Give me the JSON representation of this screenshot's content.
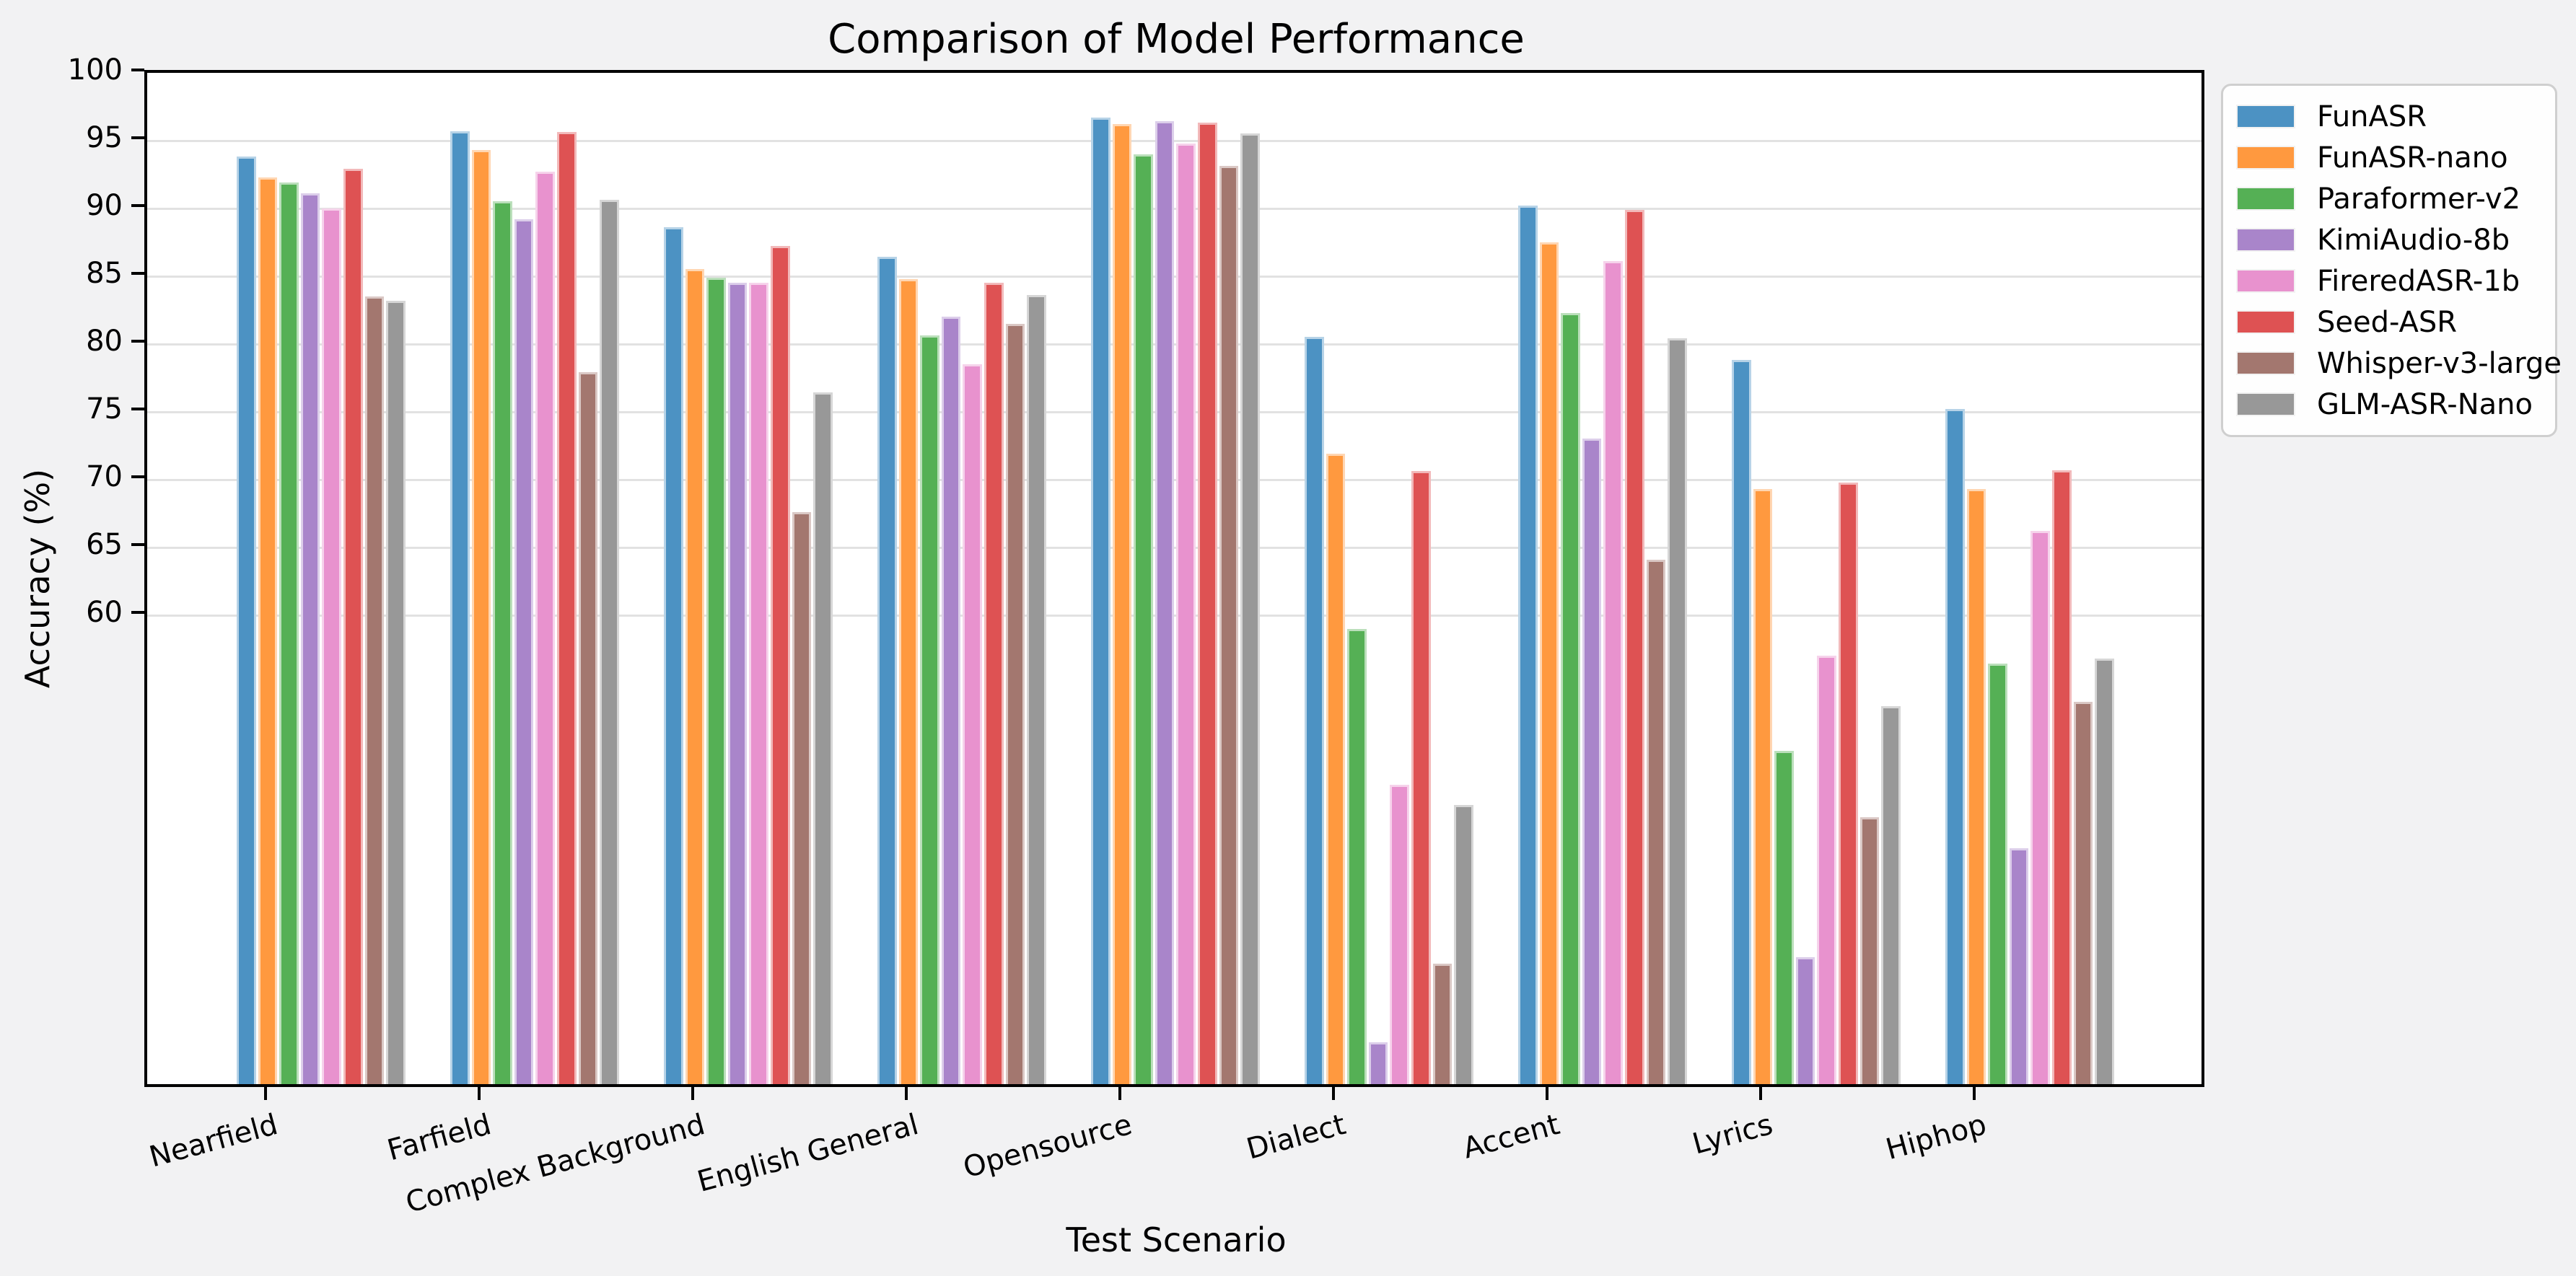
{
  "chart_data": {
    "type": "bar",
    "title": "Comparison of Model Performance",
    "xlabel": "Test Scenario",
    "ylabel": "Accuracy (%)",
    "categories": [
      "Nearfield",
      "Farfield",
      "Complex Background",
      "English General",
      "Opensource",
      "Dialect",
      "Accent",
      "Lyrics",
      "Hiphop"
    ],
    "series": [
      {
        "name": "FunASR",
        "color": "#4C92C3",
        "values": [
          93.6,
          95.5,
          88.4,
          86.2,
          96.5,
          80.3,
          90.0,
          78.6,
          75.0
        ]
      },
      {
        "name": "FunASR-nano",
        "color": "#FF993F",
        "values": [
          92.1,
          94.1,
          85.3,
          84.6,
          96.0,
          71.7,
          87.3,
          69.1,
          69.1
        ]
      },
      {
        "name": "Paraformer-v2",
        "color": "#55B055",
        "values": [
          91.7,
          90.3,
          84.7,
          80.4,
          93.8,
          58.8,
          82.1,
          49.8,
          56.2
        ]
      },
      {
        "name": "KimiAudio-8b",
        "color": "#A985CA",
        "values": [
          90.9,
          89.0,
          84.3,
          81.8,
          96.2,
          28.3,
          72.8,
          34.6,
          42.6
        ]
      },
      {
        "name": "FireredASR-1b",
        "color": "#E892CE",
        "values": [
          89.8,
          92.5,
          84.3,
          78.3,
          94.6,
          47.3,
          85.9,
          56.8,
          66.0
        ]
      },
      {
        "name": "Seed-ASR",
        "color": "#DE5253",
        "values": [
          92.7,
          95.4,
          87.0,
          84.3,
          96.1,
          70.4,
          89.7,
          69.6,
          70.5
        ]
      },
      {
        "name": "Whisper-v3-large",
        "color": "#A3776F",
        "values": [
          83.3,
          77.7,
          67.4,
          81.3,
          92.9,
          34.1,
          63.9,
          44.9,
          53.4
        ]
      },
      {
        "name": "GLM-ASR-Nano",
        "color": "#989898",
        "values": [
          83.0,
          90.4,
          76.2,
          83.4,
          95.3,
          45.8,
          80.2,
          53.1,
          56.6
        ]
      }
    ],
    "yticks": [
      60,
      65,
      70,
      75,
      80,
      85,
      90,
      95,
      100
    ],
    "ylim": [
      25,
      100
    ],
    "grid": true,
    "legend_position": "upper right outside",
    "colors": {
      "figure_background": "#f2f2f3",
      "plot_background": "#ffffff",
      "gridline": "#e2e2e2",
      "spine": "#000000"
    }
  }
}
